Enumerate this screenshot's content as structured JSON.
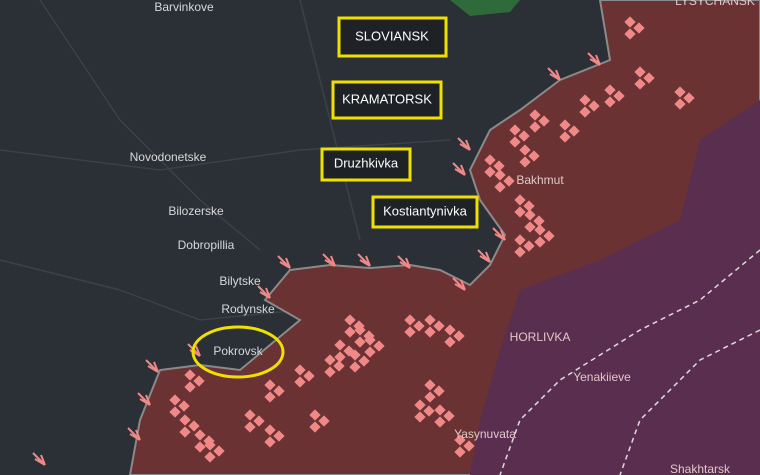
{
  "map": {
    "places": [
      "Barvinkove",
      "Novodonetske",
      "Bilozerske",
      "Dobropillia",
      "Bilytske",
      "Rodynske",
      "Pokrovsk",
      "LYSYCHANSK",
      "Bakhmut",
      "HORLIVKA",
      "Yenakiieve",
      "Yasynuvata",
      "Shakhtarsk"
    ],
    "highlighted": [
      "SLOVIANSK",
      "KRAMATORSK",
      "Druzhkivka",
      "Kostiantynivka"
    ]
  }
}
